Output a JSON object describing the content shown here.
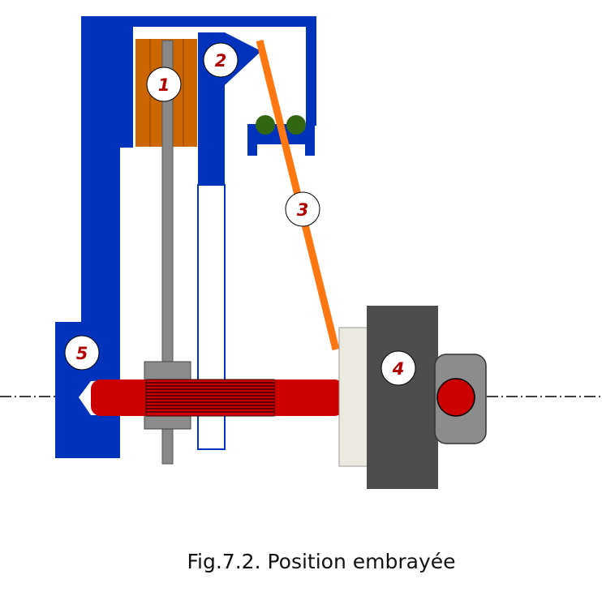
{
  "figure": {
    "caption": "Fig.7.2. Position embrayée",
    "labels": [
      "1",
      "2",
      "3",
      "4",
      "5"
    ]
  },
  "colors": {
    "housing": "#0033bb",
    "disc": "#cc6600",
    "lever": "#ff7711",
    "shaft": "#cc0000",
    "hub": "#8c8c8c",
    "engine": "#4d4d4d",
    "bearing": "#ece9e0",
    "roller": "#336611",
    "label_text": "#b00000"
  }
}
